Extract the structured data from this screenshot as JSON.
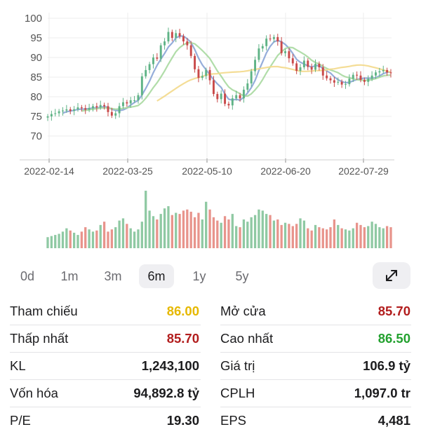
{
  "chart_data": {
    "type": "candlestick",
    "x_tick_labels": [
      "2022-02-14",
      "2022-03-25",
      "2022-05-10",
      "2022-06-20",
      "2022-07-29"
    ],
    "y_tick_labels": [
      "70",
      "75",
      "80",
      "85",
      "90",
      "95",
      "100"
    ],
    "ylim": [
      70,
      100
    ],
    "grid": true,
    "colors": {
      "up": "#5fb386",
      "down": "#c94a4a",
      "ma_fast": "#8aa4d6",
      "ma_mid": "#a8d9a0",
      "ma_slow": "#f3d98b",
      "volume_up": "#8fc9a3",
      "volume_down": "#e8948c"
    },
    "close_series": [
      75.0,
      75.6,
      75.8,
      76.3,
      76.5,
      76.8,
      76.4,
      76.8,
      77.3,
      77.1,
      76.7,
      77.1,
      77.6,
      77.3,
      77.9,
      77.6,
      76.1,
      75.2,
      75.8,
      77.6,
      78.6,
      78.3,
      79.1,
      79.1,
      80.4,
      85.2,
      86.8,
      88.3,
      90.0,
      89.7,
      93.1,
      94.1,
      96.5,
      95.0,
      96.2,
      95.4,
      94.1,
      93.1,
      90.4,
      87.0,
      84.8,
      85.3,
      86.8,
      84.2,
      80.7,
      79.4,
      80.8,
      78.2,
      77.8,
      79.6,
      80.4,
      79.6,
      81.8,
      83.4,
      86.5,
      89.4,
      92.3,
      92.9,
      94.8,
      94.7,
      95.2,
      94.1,
      91.1,
      91.6,
      89.8,
      88.5,
      86.6,
      87.5,
      89.2,
      87.6,
      86.9,
      88.4,
      87.5,
      85.4,
      84.7,
      84.2,
      83.6,
      83.8,
      83.1,
      83.2,
      84.6,
      85.6,
      85.4,
      84.3,
      83.8,
      84.6,
      85.4,
      86.2,
      86.5,
      86.8,
      86.2,
      86.0
    ],
    "volume_series": [
      1.0,
      1.1,
      1.2,
      1.3,
      1.5,
      1.8,
      1.6,
      1.4,
      1.2,
      1.5,
      1.9,
      1.7,
      1.5,
      1.6,
      2.1,
      2.4,
      1.5,
      1.7,
      1.9,
      2.5,
      2.7,
      2.2,
      1.8,
      1.5,
      1.7,
      2.4,
      5.2,
      3.4,
      2.9,
      2.6,
      3.1,
      3.6,
      3.8,
      3.0,
      3.2,
      3.1,
      3.4,
      3.5,
      3.3,
      2.8,
      3.2,
      2.6,
      4.2,
      3.5,
      2.8,
      2.5,
      2.3,
      2.9,
      2.6,
      3.1,
      2.0,
      1.9,
      2.6,
      2.4,
      2.8,
      3.0,
      3.5,
      3.4,
      3.1,
      3.0,
      2.5,
      2.6,
      2.1,
      2.3,
      2.2,
      2.0,
      2.2,
      2.7,
      2.5,
      1.8,
      1.6,
      2.1,
      1.9,
      1.8,
      1.7,
      1.9,
      2.6,
      2.1,
      1.8,
      1.7,
      1.6,
      1.8,
      2.3,
      2.1,
      1.9,
      2.0,
      2.4,
      2.2,
      1.9,
      1.8,
      2.0,
      1.9
    ]
  },
  "range_tabs": [
    {
      "label": "0d"
    },
    {
      "label": "1m"
    },
    {
      "label": "3m"
    },
    {
      "label": "6m",
      "active": true
    },
    {
      "label": "1y"
    },
    {
      "label": "5y"
    }
  ],
  "expand_icon": "expand-arrows-icon",
  "stats": [
    {
      "left_label": "Tham chiếu",
      "left_value": "86.00",
      "left_color": "#e6b800",
      "right_label": "Mở cửa",
      "right_value": "85.70",
      "right_color": "#b21d1d"
    },
    {
      "left_label": "Thấp nhất",
      "left_value": "85.70",
      "left_color": "#b21d1d",
      "right_label": "Cao nhất",
      "right_value": "86.50",
      "right_color": "#23a12f"
    },
    {
      "left_label": "KL",
      "left_value": "1,243,100",
      "left_color": "#1c1c1e",
      "right_label": "Giá trị",
      "right_value": "106.9 tỷ",
      "right_color": "#1c1c1e"
    },
    {
      "left_label": "Vốn hóa",
      "left_value": "94,892.8 tỷ",
      "left_color": "#1c1c1e",
      "right_label": "CPLH",
      "right_value": "1,097.0 tr",
      "right_color": "#1c1c1e"
    },
    {
      "left_label": "P/E",
      "left_value": "19.30",
      "left_color": "#1c1c1e",
      "right_label": "EPS",
      "right_value": "4,481",
      "right_color": "#1c1c1e"
    }
  ]
}
